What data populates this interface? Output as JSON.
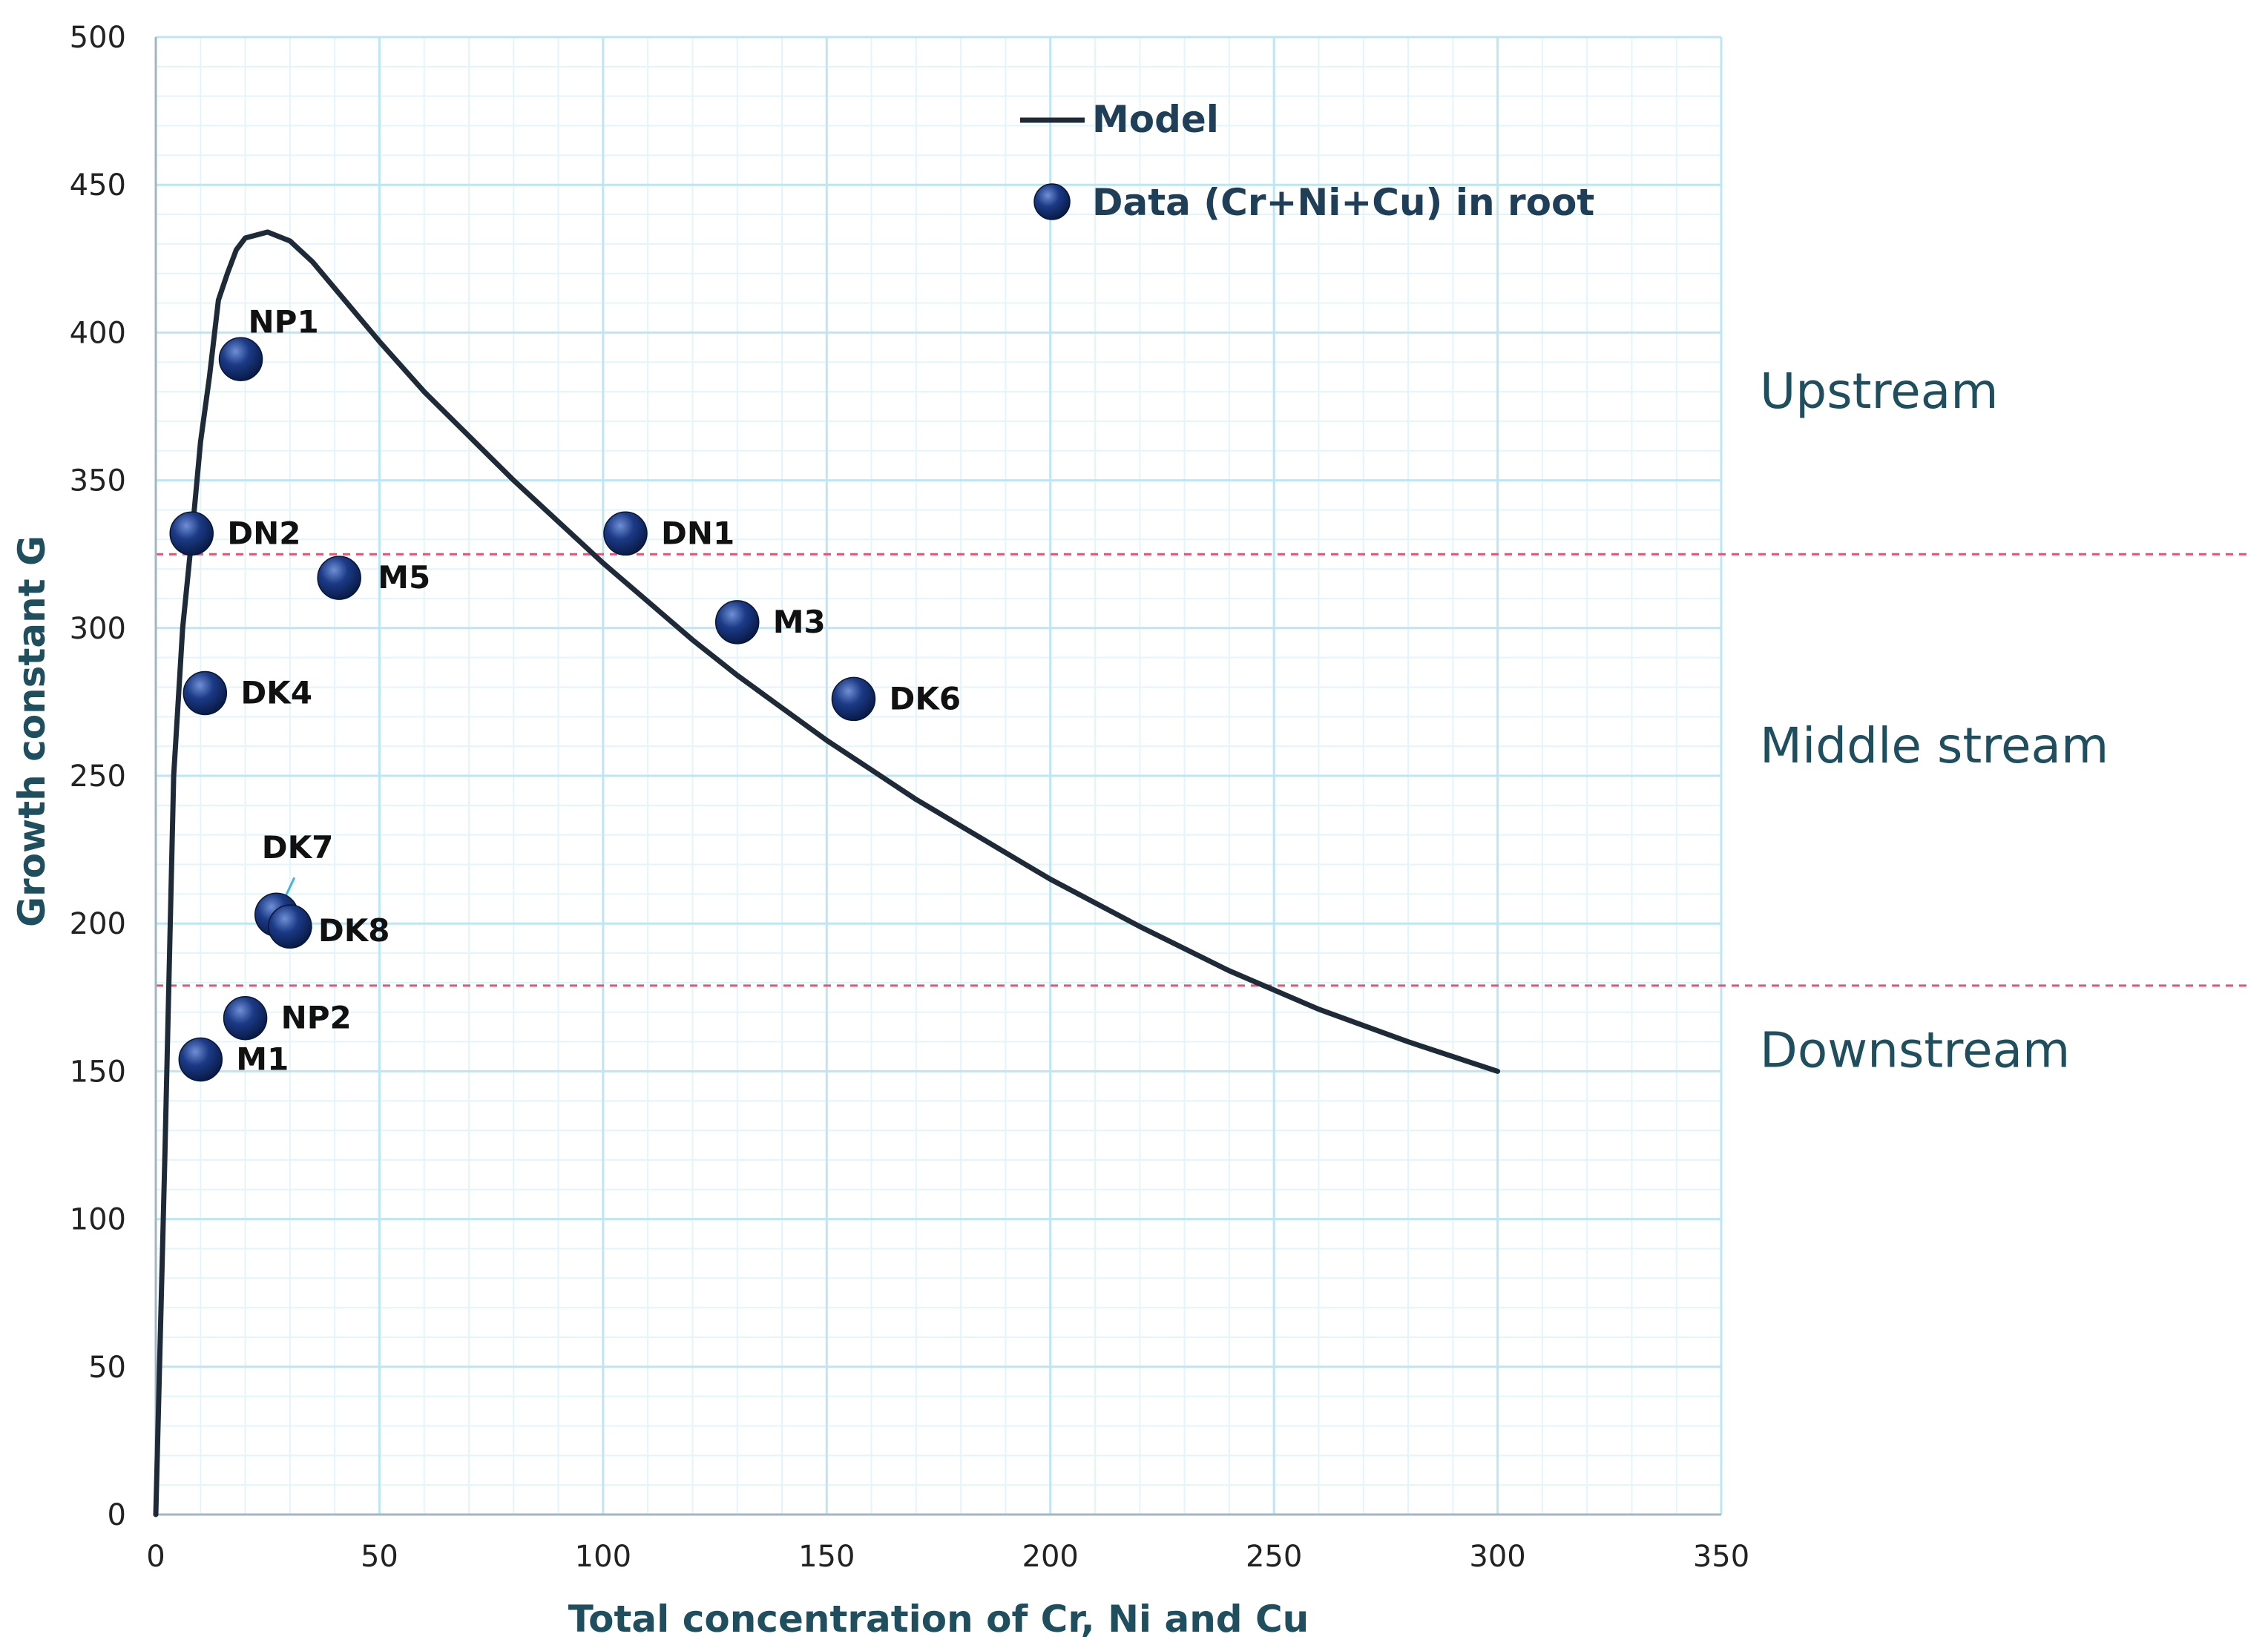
{
  "chart_data": {
    "type": "scatter",
    "title": "",
    "xlabel": "Total concentration of Cr, Ni and Cu",
    "ylabel": "Growth constant G",
    "xlim": [
      0,
      350
    ],
    "ylim": [
      0,
      500
    ],
    "x_ticks": [
      "0",
      "50",
      "100",
      "150",
      "200",
      "250",
      "300",
      "350"
    ],
    "y_ticks": [
      "0",
      "50",
      "100",
      "150",
      "200",
      "250",
      "300",
      "350",
      "400",
      "450",
      "500"
    ],
    "grid": true,
    "legend": {
      "placement": "top-right",
      "entries": [
        {
          "name": "Model",
          "kind": "line"
        },
        {
          "name": "Data (Cr+Ni+Cu) in root",
          "kind": "marker"
        }
      ]
    },
    "series": [
      {
        "name": "Model",
        "kind": "line",
        "color": "#1e2a38",
        "x": [
          0,
          2,
          4,
          6,
          8,
          10,
          12,
          14,
          16,
          18,
          20,
          25,
          30,
          35,
          40,
          50,
          60,
          70,
          80,
          90,
          100,
          110,
          120,
          130,
          140,
          150,
          160,
          170,
          180,
          190,
          200,
          220,
          240,
          260,
          280,
          300
        ],
        "y": [
          0,
          120,
          250,
          300,
          330,
          363,
          385,
          411,
          420,
          428,
          432,
          434,
          431,
          424,
          415,
          397,
          380,
          365,
          350,
          336,
          322,
          309,
          296,
          284,
          273,
          262,
          252,
          242,
          233,
          224,
          215,
          199,
          184,
          171,
          160,
          150
        ]
      },
      {
        "name": "Data (Cr+Ni+Cu) in root",
        "kind": "scatter",
        "color": "#0e2a66",
        "points": [
          {
            "label": "NP1",
            "x": 19,
            "y": 391
          },
          {
            "label": "DN2",
            "x": 8,
            "y": 332
          },
          {
            "label": "M5",
            "x": 41,
            "y": 317
          },
          {
            "label": "DN1",
            "x": 105,
            "y": 332
          },
          {
            "label": "M3",
            "x": 130,
            "y": 302
          },
          {
            "label": "DK6",
            "x": 156,
            "y": 276
          },
          {
            "label": "DK4",
            "x": 11,
            "y": 278
          },
          {
            "label": "DK7",
            "x": 27,
            "y": 203
          },
          {
            "label": "DK8",
            "x": 30,
            "y": 199
          },
          {
            "label": "NP2",
            "x": 20,
            "y": 168
          },
          {
            "label": "M1",
            "x": 10,
            "y": 154
          }
        ]
      }
    ],
    "thresholds": [
      {
        "y": 325,
        "color": "#e05575",
        "style": "dashed"
      },
      {
        "y": 179,
        "color": "#e05575",
        "style": "dashed"
      }
    ],
    "zones": [
      {
        "label": "Upstream",
        "y": 380
      },
      {
        "label": "Middle stream",
        "y": 260
      },
      {
        "label": "Downstream",
        "y": 157
      }
    ]
  }
}
